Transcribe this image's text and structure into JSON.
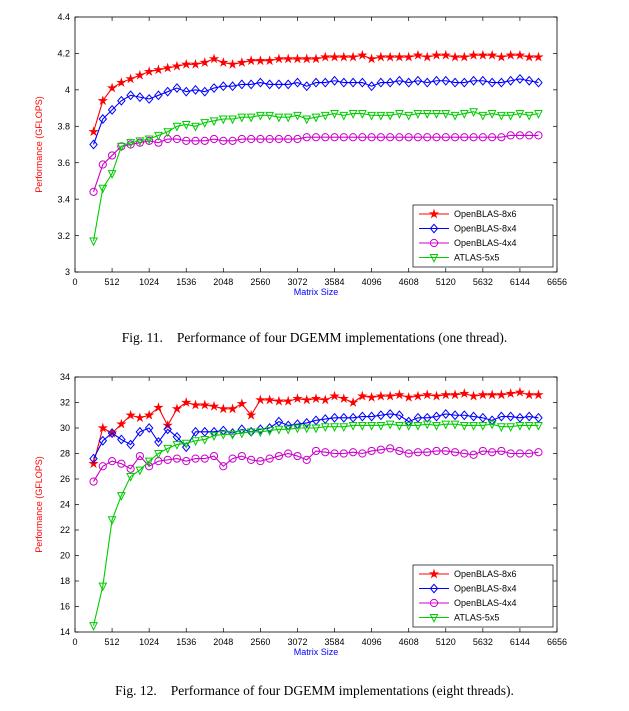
{
  "figures": [
    {
      "number": "Fig. 11.",
      "caption": "Performance of four DGEMM implementations (one thread)."
    },
    {
      "number": "Fig. 12.",
      "caption": "Performance of four DGEMM implementations (eight threads)."
    }
  ],
  "chart_data": [
    {
      "type": "line",
      "title": "",
      "xlabel": "Matrix Size",
      "ylabel": "Performance (GFLOPS)",
      "ylabel_color": "#ff0000",
      "xlabel_color": "#0000ff",
      "xlim": [
        0,
        6656
      ],
      "ylim": [
        3,
        4.4
      ],
      "xticks": [
        0,
        512,
        1024,
        1536,
        2048,
        2560,
        3072,
        3584,
        4096,
        4608,
        5120,
        5632,
        6144,
        6656
      ],
      "yticks": [
        3,
        3.2,
        3.4,
        3.6,
        3.8,
        4,
        4.2,
        4.4
      ],
      "ytick_labels": [
        "3",
        "3.2",
        "3.4",
        "3.6",
        "3.8",
        "4",
        "4.2",
        "4.4"
      ],
      "legend_position": "lower-right",
      "x": [
        256,
        384,
        512,
        640,
        768,
        896,
        1024,
        1152,
        1280,
        1408,
        1536,
        1664,
        1792,
        1920,
        2048,
        2176,
        2304,
        2432,
        2560,
        2688,
        2816,
        2944,
        3072,
        3200,
        3328,
        3456,
        3584,
        3712,
        3840,
        3968,
        4096,
        4224,
        4352,
        4480,
        4608,
        4736,
        4864,
        4992,
        5120,
        5248,
        5376,
        5504,
        5632,
        5760,
        5888,
        6016,
        6144,
        6272,
        6400
      ],
      "series": [
        {
          "name": "OpenBLAS-8x6",
          "color": "#ff0000",
          "marker": "star",
          "values": [
            3.77,
            3.94,
            4.01,
            4.04,
            4.06,
            4.08,
            4.1,
            4.11,
            4.12,
            4.13,
            4.14,
            4.14,
            4.15,
            4.17,
            4.15,
            4.14,
            4.15,
            4.16,
            4.16,
            4.16,
            4.17,
            4.17,
            4.17,
            4.17,
            4.17,
            4.18,
            4.18,
            4.18,
            4.18,
            4.19,
            4.17,
            4.18,
            4.18,
            4.18,
            4.18,
            4.19,
            4.18,
            4.19,
            4.19,
            4.18,
            4.18,
            4.19,
            4.19,
            4.19,
            4.18,
            4.19,
            4.19,
            4.18,
            4.18
          ]
        },
        {
          "name": "OpenBLAS-8x4",
          "color": "#0000ff",
          "marker": "diamond",
          "values": [
            3.7,
            3.84,
            3.89,
            3.94,
            3.97,
            3.96,
            3.95,
            3.97,
            3.99,
            4.01,
            3.99,
            4.0,
            3.99,
            4.01,
            4.02,
            4.02,
            4.03,
            4.03,
            4.04,
            4.03,
            4.03,
            4.03,
            4.04,
            4.02,
            4.04,
            4.04,
            4.05,
            4.04,
            4.04,
            4.04,
            4.02,
            4.04,
            4.04,
            4.05,
            4.04,
            4.05,
            4.04,
            4.05,
            4.05,
            4.04,
            4.04,
            4.05,
            4.05,
            4.04,
            4.04,
            4.05,
            4.06,
            4.05,
            4.04
          ]
        },
        {
          "name": "OpenBLAS-4x4",
          "color": "#cc00cc",
          "marker": "circle",
          "values": [
            3.44,
            3.59,
            3.64,
            3.69,
            3.7,
            3.71,
            3.72,
            3.71,
            3.73,
            3.73,
            3.72,
            3.72,
            3.72,
            3.73,
            3.72,
            3.72,
            3.73,
            3.73,
            3.73,
            3.73,
            3.73,
            3.73,
            3.73,
            3.74,
            3.74,
            3.74,
            3.74,
            3.74,
            3.74,
            3.74,
            3.74,
            3.74,
            3.74,
            3.74,
            3.74,
            3.74,
            3.74,
            3.74,
            3.74,
            3.74,
            3.74,
            3.74,
            3.74,
            3.74,
            3.74,
            3.75,
            3.75,
            3.75,
            3.75
          ]
        },
        {
          "name": "ATLAS-5x5",
          "color": "#00cc00",
          "marker": "triangle-down",
          "values": [
            3.17,
            3.46,
            3.54,
            3.69,
            3.71,
            3.72,
            3.73,
            3.75,
            3.77,
            3.8,
            3.81,
            3.8,
            3.82,
            3.83,
            3.84,
            3.84,
            3.85,
            3.85,
            3.86,
            3.86,
            3.85,
            3.85,
            3.86,
            3.84,
            3.85,
            3.86,
            3.87,
            3.86,
            3.87,
            3.87,
            3.86,
            3.86,
            3.86,
            3.87,
            3.86,
            3.87,
            3.87,
            3.87,
            3.87,
            3.86,
            3.87,
            3.88,
            3.86,
            3.87,
            3.86,
            3.86,
            3.87,
            3.86,
            3.87
          ]
        }
      ]
    },
    {
      "type": "line",
      "title": "",
      "xlabel": "Matrix Size",
      "ylabel": "Performance (GFLOPS)",
      "ylabel_color": "#ff0000",
      "xlabel_color": "#0000ff",
      "xlim": [
        0,
        6656
      ],
      "ylim": [
        14,
        34
      ],
      "xticks": [
        0,
        512,
        1024,
        1536,
        2048,
        2560,
        3072,
        3584,
        4096,
        4608,
        5120,
        5632,
        6144,
        6656
      ],
      "yticks": [
        14,
        16,
        18,
        20,
        22,
        24,
        26,
        28,
        30,
        32,
        34
      ],
      "ytick_labels": [
        "14",
        "16",
        "18",
        "20",
        "22",
        "24",
        "26",
        "28",
        "30",
        "32",
        "34"
      ],
      "legend_position": "lower-right",
      "x": [
        256,
        384,
        512,
        640,
        768,
        896,
        1024,
        1152,
        1280,
        1408,
        1536,
        1664,
        1792,
        1920,
        2048,
        2176,
        2304,
        2432,
        2560,
        2688,
        2816,
        2944,
        3072,
        3200,
        3328,
        3456,
        3584,
        3712,
        3840,
        3968,
        4096,
        4224,
        4352,
        4480,
        4608,
        4736,
        4864,
        4992,
        5120,
        5248,
        5376,
        5504,
        5632,
        5760,
        5888,
        6016,
        6144,
        6272,
        6400
      ],
      "series": [
        {
          "name": "OpenBLAS-8x6",
          "color": "#ff0000",
          "marker": "star",
          "values": [
            27.2,
            30.0,
            29.6,
            30.3,
            31.0,
            30.8,
            31.0,
            31.6,
            30.2,
            31.5,
            32.0,
            31.8,
            31.8,
            31.7,
            31.5,
            31.5,
            31.9,
            31.0,
            32.2,
            32.2,
            32.1,
            32.1,
            32.3,
            32.2,
            32.3,
            32.2,
            32.5,
            32.3,
            32.0,
            32.5,
            32.4,
            32.5,
            32.5,
            32.6,
            32.4,
            32.5,
            32.6,
            32.5,
            32.6,
            32.6,
            32.7,
            32.5,
            32.6,
            32.6,
            32.6,
            32.7,
            32.8,
            32.6,
            32.6
          ]
        },
        {
          "name": "OpenBLAS-8x4",
          "color": "#0000ff",
          "marker": "diamond",
          "values": [
            27.6,
            29.0,
            29.6,
            29.1,
            28.7,
            29.7,
            30.0,
            28.9,
            29.9,
            29.3,
            28.5,
            29.7,
            29.7,
            29.7,
            29.8,
            29.6,
            29.9,
            29.7,
            29.9,
            30.0,
            30.5,
            30.2,
            30.3,
            30.4,
            30.6,
            30.7,
            30.8,
            30.8,
            30.8,
            30.9,
            30.9,
            31.0,
            31.1,
            31.0,
            30.5,
            30.8,
            30.8,
            30.9,
            31.1,
            31.0,
            31.0,
            30.9,
            30.8,
            30.6,
            30.9,
            30.9,
            30.8,
            30.9,
            30.8
          ]
        },
        {
          "name": "OpenBLAS-4x4",
          "color": "#cc00cc",
          "marker": "circle",
          "values": [
            25.8,
            27.0,
            27.4,
            27.2,
            26.8,
            27.8,
            27.0,
            27.4,
            27.5,
            27.6,
            27.4,
            27.6,
            27.6,
            27.8,
            27.0,
            27.6,
            27.8,
            27.5,
            27.4,
            27.6,
            27.8,
            28.0,
            27.8,
            27.5,
            28.2,
            28.1,
            28.0,
            28.0,
            28.1,
            28.0,
            28.2,
            28.3,
            28.4,
            28.2,
            28.0,
            28.1,
            28.1,
            28.2,
            28.2,
            28.1,
            28.0,
            27.9,
            28.2,
            28.1,
            28.2,
            28.0,
            28.0,
            28.0,
            28.1
          ]
        },
        {
          "name": "ATLAS-5x5",
          "color": "#00cc00",
          "marker": "triangle-down",
          "values": [
            14.5,
            17.6,
            22.8,
            24.7,
            26.2,
            26.7,
            27.4,
            28.0,
            28.4,
            28.7,
            28.8,
            29.0,
            29.1,
            29.4,
            29.5,
            29.5,
            29.6,
            29.7,
            29.7,
            29.8,
            29.9,
            29.9,
            30.0,
            30.0,
            30.0,
            30.1,
            30.1,
            30.1,
            30.2,
            30.2,
            30.2,
            30.2,
            30.3,
            30.2,
            30.2,
            30.2,
            30.3,
            30.2,
            30.3,
            30.3,
            30.2,
            30.2,
            30.2,
            30.3,
            30.1,
            30.1,
            30.2,
            30.2,
            30.2
          ]
        }
      ]
    }
  ]
}
